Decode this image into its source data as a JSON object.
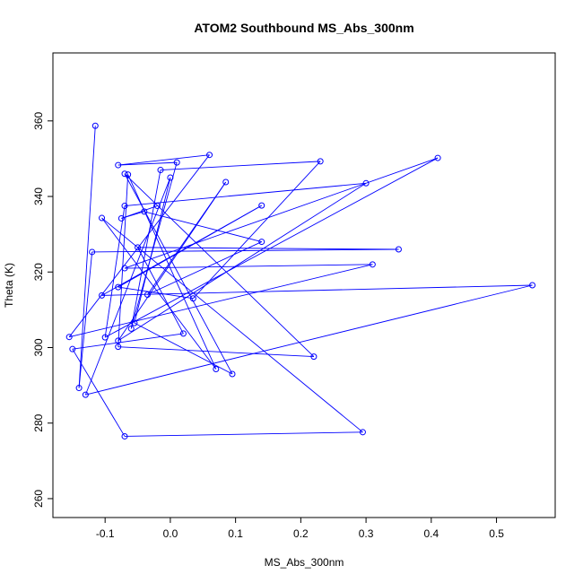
{
  "chart_data": {
    "type": "line",
    "title": "ATOM2 Southbound MS_Abs_300nm",
    "xlabel": "MS_Abs_300nm",
    "ylabel": "Theta (K)",
    "xlim": [
      -0.18,
      0.59
    ],
    "ylim": [
      255,
      378
    ],
    "x_ticks": [
      -0.1,
      0.0,
      0.1,
      0.2,
      0.3,
      0.4,
      0.5
    ],
    "x_tick_labels": [
      "-0.1",
      "0.0",
      "0.1",
      "0.2",
      "0.3",
      "0.4",
      "0.5"
    ],
    "y_ticks": [
      260,
      280,
      300,
      320,
      340,
      360
    ],
    "y_tick_labels": [
      "260",
      "280",
      "300",
      "320",
      "340",
      "360"
    ],
    "grid": false,
    "series": [
      {
        "color": "#0000ff",
        "marker": "open-circle",
        "points": [
          [
            -0.115,
            358.7
          ],
          [
            -0.14,
            289.3
          ],
          [
            -0.12,
            325.3
          ],
          [
            0.35,
            326.0
          ],
          [
            -0.05,
            326.5
          ],
          [
            0.02,
            303.7
          ],
          [
            -0.15,
            299.6
          ],
          [
            -0.07,
            276.5
          ],
          [
            0.295,
            277.6
          ],
          [
            -0.105,
            334.3
          ],
          [
            0.07,
            294.3
          ],
          [
            -0.065,
            345.8
          ],
          [
            -0.08,
            300.2
          ],
          [
            0.22,
            297.6
          ],
          [
            -0.07,
            346.0
          ],
          [
            0.095,
            293.0
          ],
          [
            -0.055,
            306.5
          ],
          [
            0.0,
            345.0
          ],
          [
            -0.13,
            287.5
          ],
          [
            0.555,
            316.5
          ],
          [
            -0.105,
            313.8
          ],
          [
            0.14,
            337.6
          ],
          [
            -0.08,
            316.0
          ],
          [
            0.035,
            313.0
          ],
          [
            0.23,
            349.3
          ],
          [
            -0.015,
            347.0
          ],
          [
            -0.06,
            305.0
          ],
          [
            0.01,
            349.0
          ],
          [
            -0.08,
            348.3
          ],
          [
            0.06,
            351.0
          ],
          [
            -0.155,
            302.8
          ],
          [
            0.31,
            322.0
          ],
          [
            -0.07,
            321.0
          ],
          [
            0.41,
            350.2
          ],
          [
            -0.1,
            302.7
          ],
          [
            -0.07,
            337.5
          ],
          [
            0.3,
            343.5
          ],
          [
            -0.08,
            301.8
          ],
          [
            0.085,
            343.8
          ],
          [
            -0.035,
            314.0
          ],
          [
            0.14,
            328.0
          ],
          [
            -0.04,
            336.0
          ],
          [
            -0.075,
            334.2
          ],
          [
            -0.02,
            337.5
          ]
        ]
      }
    ]
  }
}
